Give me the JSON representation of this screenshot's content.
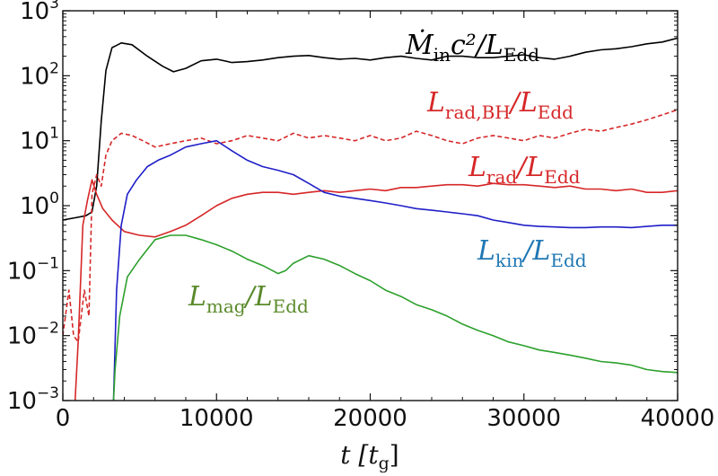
{
  "chart_data": {
    "type": "line",
    "xlabel": "t [t_g]",
    "ylabel": "",
    "xlim": [
      0,
      40000
    ],
    "ylim": [
      0.001,
      1000
    ],
    "yscale": "log",
    "grid": false,
    "x_ticks": [
      "0",
      "10000",
      "20000",
      "30000",
      "40000"
    ],
    "y_ticks": [
      {
        "value": 0.001,
        "label": "10",
        "exp": "−3"
      },
      {
        "value": 0.01,
        "label": "10",
        "exp": "−2"
      },
      {
        "value": 0.1,
        "label": "10",
        "exp": "−1"
      },
      {
        "value": 1,
        "label": "10",
        "exp": "0"
      },
      {
        "value": 10,
        "label": "10",
        "exp": "1"
      },
      {
        "value": 100,
        "label": "10",
        "exp": "2"
      },
      {
        "value": 1000,
        "label": "10",
        "exp": "3"
      }
    ],
    "series": [
      {
        "name": "Ṁin c²/LEdd",
        "color": "#000000",
        "dash": "solid",
        "label_parts": {
          "main": "Ṁ",
          "sub1": "in",
          "mid": "c²/L",
          "sub2": "Edd"
        },
        "points": [
          [
            0,
            0.6
          ],
          [
            800,
            0.65
          ],
          [
            1500,
            0.7
          ],
          [
            1900,
            0.8
          ],
          [
            2200,
            2
          ],
          [
            2500,
            20
          ],
          [
            2800,
            120
          ],
          [
            3200,
            270
          ],
          [
            3800,
            320
          ],
          [
            4500,
            300
          ],
          [
            5500,
            200
          ],
          [
            6500,
            140
          ],
          [
            7200,
            115
          ],
          [
            8000,
            130
          ],
          [
            9000,
            170
          ],
          [
            10000,
            180
          ],
          [
            11000,
            160
          ],
          [
            12000,
            165
          ],
          [
            13000,
            175
          ],
          [
            14000,
            190
          ],
          [
            15000,
            200
          ],
          [
            16000,
            205
          ],
          [
            17000,
            190
          ],
          [
            18000,
            180
          ],
          [
            19000,
            185
          ],
          [
            20000,
            175
          ],
          [
            21000,
            190
          ],
          [
            22000,
            200
          ],
          [
            23000,
            185
          ],
          [
            24000,
            175
          ],
          [
            25000,
            200
          ],
          [
            26000,
            200
          ],
          [
            27000,
            190
          ],
          [
            28000,
            190
          ],
          [
            29000,
            200
          ],
          [
            30000,
            210
          ],
          [
            31000,
            190
          ],
          [
            32000,
            180
          ],
          [
            33000,
            200
          ],
          [
            34000,
            230
          ],
          [
            35000,
            250
          ],
          [
            36000,
            260
          ],
          [
            37000,
            280
          ],
          [
            38000,
            310
          ],
          [
            39000,
            330
          ],
          [
            40000,
            380
          ]
        ]
      },
      {
        "name": "Lrad,BH/LEdd",
        "color": "#d62728",
        "dash": "dashed",
        "label_parts": {
          "main": "L",
          "sub1": "rad,BH",
          "mid": "/L",
          "sub2": "Edd"
        },
        "points": [
          [
            0,
            0.01
          ],
          [
            400,
            0.05
          ],
          [
            700,
            0.01
          ],
          [
            1000,
            0.008
          ],
          [
            1400,
            0.05
          ],
          [
            1700,
            0.02
          ],
          [
            1900,
            1.5
          ],
          [
            2200,
            3
          ],
          [
            2500,
            2
          ],
          [
            2800,
            6
          ],
          [
            3200,
            10
          ],
          [
            3800,
            13
          ],
          [
            4500,
            12
          ],
          [
            5200,
            10
          ],
          [
            6000,
            8
          ],
          [
            7000,
            9
          ],
          [
            8000,
            10
          ],
          [
            9000,
            11
          ],
          [
            10000,
            9
          ],
          [
            11000,
            10
          ],
          [
            12000,
            12
          ],
          [
            13000,
            11
          ],
          [
            14000,
            10
          ],
          [
            15000,
            13
          ],
          [
            16000,
            11
          ],
          [
            17000,
            12
          ],
          [
            18000,
            11
          ],
          [
            19000,
            10
          ],
          [
            20000,
            12
          ],
          [
            21000,
            10
          ],
          [
            22000,
            11
          ],
          [
            23000,
            14
          ],
          [
            24000,
            12
          ],
          [
            25000,
            10
          ],
          [
            26000,
            9
          ],
          [
            27000,
            11
          ],
          [
            28000,
            12
          ],
          [
            29000,
            11
          ],
          [
            30000,
            10
          ],
          [
            31000,
            12
          ],
          [
            32000,
            11
          ],
          [
            33000,
            13
          ],
          [
            34000,
            15
          ],
          [
            35000,
            14
          ],
          [
            36000,
            16
          ],
          [
            37000,
            18
          ],
          [
            38000,
            21
          ],
          [
            39000,
            25
          ],
          [
            40000,
            30
          ]
        ]
      },
      {
        "name": "Lrad/LEdd",
        "color": "#d62728",
        "dash": "solid",
        "label_parts": {
          "main": "L",
          "sub1": "rad",
          "mid": "/L",
          "sub2": "Edd"
        },
        "points": [
          [
            800,
            0.001
          ],
          [
            1000,
            0.008
          ],
          [
            1300,
            0.5
          ],
          [
            1600,
            1.2
          ],
          [
            1900,
            2.5
          ],
          [
            2200,
            1.5
          ],
          [
            2600,
            0.9
          ],
          [
            3200,
            0.6
          ],
          [
            4000,
            0.4
          ],
          [
            5000,
            0.35
          ],
          [
            6000,
            0.33
          ],
          [
            7000,
            0.4
          ],
          [
            8000,
            0.5
          ],
          [
            9000,
            0.7
          ],
          [
            10000,
            1
          ],
          [
            11000,
            1.3
          ],
          [
            12000,
            1.5
          ],
          [
            13000,
            1.6
          ],
          [
            14000,
            1.6
          ],
          [
            15000,
            1.5
          ],
          [
            16000,
            1.6
          ],
          [
            17000,
            1.7
          ],
          [
            18000,
            1.6
          ],
          [
            19000,
            1.7
          ],
          [
            20000,
            1.8
          ],
          [
            21000,
            1.7
          ],
          [
            22000,
            1.9
          ],
          [
            23000,
            1.9
          ],
          [
            24000,
            2
          ],
          [
            25000,
            2.1
          ],
          [
            26000,
            2.1
          ],
          [
            27000,
            2
          ],
          [
            28000,
            2.2
          ],
          [
            29000,
            2.1
          ],
          [
            30000,
            2.1
          ],
          [
            31000,
            2
          ],
          [
            32000,
            1.9
          ],
          [
            33000,
            2
          ],
          [
            34000,
            1.8
          ],
          [
            35000,
            1.8
          ],
          [
            36000,
            1.7
          ],
          [
            37000,
            1.8
          ],
          [
            38000,
            1.6
          ],
          [
            39000,
            1.6
          ],
          [
            40000,
            1.7
          ]
        ]
      },
      {
        "name": "Lkin/LEdd",
        "color": "#1f1fc8",
        "dash": "solid",
        "label_color": "#1f77b4",
        "label_parts": {
          "main": "L",
          "sub1": "kin",
          "mid": "/L",
          "sub2": "Edd"
        },
        "points": [
          [
            3300,
            0.001
          ],
          [
            3500,
            0.05
          ],
          [
            3800,
            0.5
          ],
          [
            4200,
            1.5
          ],
          [
            4800,
            2.5
          ],
          [
            5500,
            4
          ],
          [
            6200,
            5
          ],
          [
            7000,
            6
          ],
          [
            8000,
            8
          ],
          [
            9000,
            9
          ],
          [
            10000,
            10
          ],
          [
            11000,
            7
          ],
          [
            12000,
            5
          ],
          [
            13000,
            4
          ],
          [
            14000,
            3.5
          ],
          [
            15000,
            3
          ],
          [
            16000,
            2.2
          ],
          [
            17000,
            1.6
          ],
          [
            18000,
            1.4
          ],
          [
            19000,
            1.3
          ],
          [
            20000,
            1.2
          ],
          [
            21000,
            1.1
          ],
          [
            22000,
            1
          ],
          [
            23000,
            0.9
          ],
          [
            24000,
            0.85
          ],
          [
            25000,
            0.8
          ],
          [
            26000,
            0.75
          ],
          [
            27000,
            0.7
          ],
          [
            28000,
            0.6
          ],
          [
            29000,
            0.55
          ],
          [
            30000,
            0.5
          ],
          [
            31000,
            0.48
          ],
          [
            32000,
            0.47
          ],
          [
            33000,
            0.46
          ],
          [
            34000,
            0.46
          ],
          [
            35000,
            0.47
          ],
          [
            36000,
            0.47
          ],
          [
            37000,
            0.46
          ],
          [
            38000,
            0.48
          ],
          [
            39000,
            0.5
          ],
          [
            40000,
            0.5
          ]
        ]
      },
      {
        "name": "Lmag/LEdd",
        "color": "#2ca02c",
        "dash": "solid",
        "label_color": "#5a8a2a",
        "label_parts": {
          "main": "L",
          "sub1": "mag",
          "mid": "/L",
          "sub2": "Edd"
        },
        "points": [
          [
            3300,
            0.001
          ],
          [
            3400,
            0.003
          ],
          [
            3700,
            0.02
          ],
          [
            4200,
            0.08
          ],
          [
            5000,
            0.15
          ],
          [
            6000,
            0.3
          ],
          [
            7000,
            0.35
          ],
          [
            8000,
            0.35
          ],
          [
            9000,
            0.3
          ],
          [
            10000,
            0.25
          ],
          [
            11000,
            0.2
          ],
          [
            12000,
            0.15
          ],
          [
            13000,
            0.12
          ],
          [
            14000,
            0.09
          ],
          [
            14500,
            0.1
          ],
          [
            15000,
            0.13
          ],
          [
            16000,
            0.17
          ],
          [
            17000,
            0.15
          ],
          [
            18000,
            0.12
          ],
          [
            19000,
            0.09
          ],
          [
            20000,
            0.07
          ],
          [
            21000,
            0.05
          ],
          [
            22000,
            0.04
          ],
          [
            23000,
            0.03
          ],
          [
            24000,
            0.025
          ],
          [
            25000,
            0.02
          ],
          [
            26000,
            0.015
          ],
          [
            27000,
            0.012
          ],
          [
            28000,
            0.01
          ],
          [
            29000,
            0.008
          ],
          [
            30000,
            0.007
          ],
          [
            31000,
            0.006
          ],
          [
            32000,
            0.0055
          ],
          [
            33000,
            0.005
          ],
          [
            34000,
            0.0045
          ],
          [
            35000,
            0.004
          ],
          [
            36000,
            0.0038
          ],
          [
            37000,
            0.0035
          ],
          [
            38000,
            0.003
          ],
          [
            39000,
            0.0028
          ],
          [
            40000,
            0.0027
          ]
        ]
      }
    ]
  }
}
